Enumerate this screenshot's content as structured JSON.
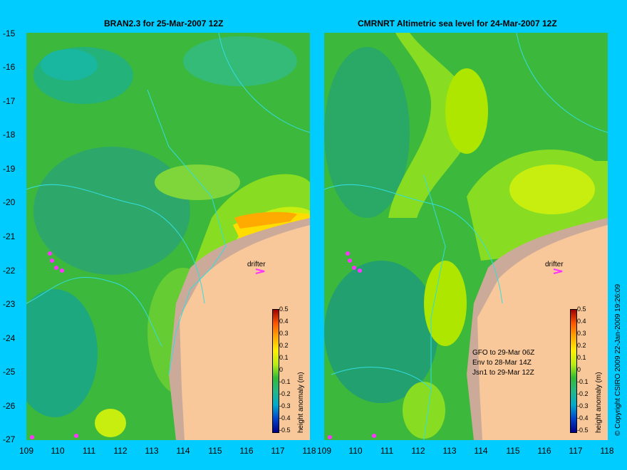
{
  "left_panel": {
    "title": "BRAN2.3 for 25-Mar-2007 12Z",
    "colorbar_title": "height anomaly (m)"
  },
  "right_panel": {
    "title": "CMRNRT Altimetric sea level  for 24-Mar-2007 12Z",
    "colorbar_title": "height anomaly (m)",
    "notes": [
      "GFO to 29-Mar 06Z",
      "Env to 28-Mar 14Z",
      "Jsn1 to 29-Mar 12Z"
    ]
  },
  "drifter_label": "drifter",
  "y_ticks": [
    "-15",
    "-16",
    "-17",
    "-18",
    "-19",
    "-20",
    "-21",
    "-22",
    "-23",
    "-24",
    "-25",
    "-26",
    "-27"
  ],
  "x_ticks": [
    "109",
    "110",
    "111",
    "112",
    "113",
    "114",
    "115",
    "116",
    "117",
    "118"
  ],
  "colorbar_ticks": [
    "0.5",
    "0.4",
    "0.3",
    "0.2",
    "0.1",
    "0",
    "-0.1",
    "-0.2",
    "-0.3",
    "-0.4",
    "-0.5"
  ],
  "copyright": "© Copyright CSIRO 2009   22-Jan-2009 19:26:09",
  "colors": {
    "background": "#00ccff",
    "land": "#f8c89a",
    "ocean_base": "#33bb33",
    "drifter": "#ff33ff",
    "contour": "#33dddd"
  }
}
